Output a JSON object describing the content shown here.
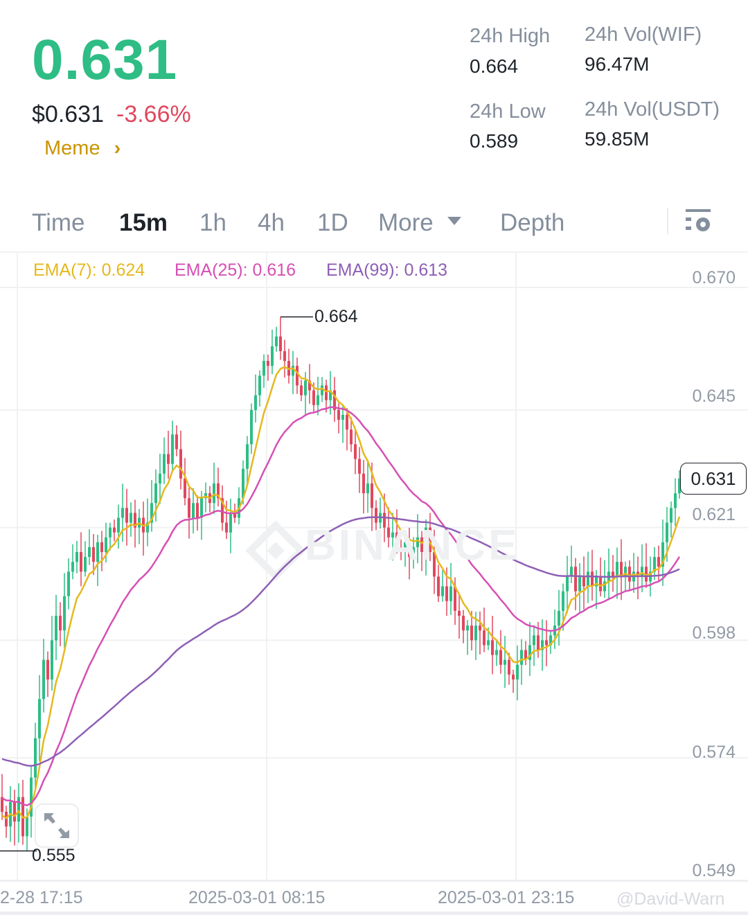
{
  "ticker": {
    "last_price": "0.631",
    "fiat_price": "$0.631",
    "change_pct": "-3.66%",
    "tag": "Meme",
    "tag_chevron": "›",
    "stats": [
      {
        "label": "24h High",
        "value": "0.664"
      },
      {
        "label": "24h Vol(WIF)",
        "value": "96.47M"
      },
      {
        "label": "24h Low",
        "value": "0.589"
      },
      {
        "label": "24h Vol(USDT)",
        "value": "59.85M"
      }
    ]
  },
  "tabs": [
    {
      "label": "Time",
      "active": false
    },
    {
      "label": "15m",
      "active": true
    },
    {
      "label": "1h",
      "active": false
    },
    {
      "label": "4h",
      "active": false
    },
    {
      "label": "1D",
      "active": false
    },
    {
      "label": "More",
      "active": false
    },
    {
      "label": "Depth",
      "active": false
    }
  ],
  "icons": {
    "more_dropdown": "caret-down-icon",
    "settings": "chart-settings-icon",
    "expand": "expand-icon",
    "watermark": "binance-logo"
  },
  "legend": [
    {
      "label": "EMA(7): 0.624",
      "color": "#e6b81e"
    },
    {
      "label": "EMA(25): 0.616",
      "color": "#d64fb4"
    },
    {
      "label": "EMA(99): 0.613",
      "color": "#8e5fb5"
    }
  ],
  "watermark": "BINANCE",
  "credit": "@David-Warn",
  "colors": {
    "up": "#2ebd85",
    "down": "#e0485e",
    "accent": "#c99400"
  },
  "chart_data": {
    "type": "candlestick",
    "interval": "15m",
    "y_ticks": [
      "0.670",
      "0.645",
      "0.621",
      "0.598",
      "0.574",
      "0.549"
    ],
    "ylim": [
      0.549,
      0.67
    ],
    "x_ticks": [
      "2-28 17:15",
      "2025-03-01 08:15",
      "2025-03-01 23:15"
    ],
    "grid": true,
    "high_marker": "0.664",
    "low_marker": "0.555",
    "last_price_label": "0.631",
    "closes": [
      0.563,
      0.56,
      0.565,
      0.561,
      0.566,
      0.558,
      0.562,
      0.57,
      0.578,
      0.586,
      0.594,
      0.59,
      0.598,
      0.603,
      0.6,
      0.607,
      0.612,
      0.614,
      0.616,
      0.612,
      0.615,
      0.617,
      0.614,
      0.618,
      0.616,
      0.619,
      0.621,
      0.62,
      0.623,
      0.625,
      0.622,
      0.624,
      0.621,
      0.623,
      0.62,
      0.622,
      0.626,
      0.63,
      0.632,
      0.636,
      0.634,
      0.64,
      0.637,
      0.631,
      0.627,
      0.623,
      0.626,
      0.623,
      0.627,
      0.628,
      0.626,
      0.63,
      0.627,
      0.622,
      0.62,
      0.624,
      0.623,
      0.627,
      0.633,
      0.638,
      0.645,
      0.648,
      0.652,
      0.655,
      0.654,
      0.658,
      0.66,
      0.657,
      0.655,
      0.652,
      0.654,
      0.65,
      0.648,
      0.651,
      0.649,
      0.646,
      0.648,
      0.65,
      0.647,
      0.649,
      0.645,
      0.643,
      0.644,
      0.641,
      0.638,
      0.635,
      0.632,
      0.628,
      0.63,
      0.625,
      0.622,
      0.624,
      0.621,
      0.619,
      0.62,
      0.617,
      0.616,
      0.618,
      0.615,
      0.617,
      0.619,
      0.616,
      0.621,
      0.616,
      0.611,
      0.607,
      0.609,
      0.606,
      0.609,
      0.604,
      0.603,
      0.6,
      0.601,
      0.598,
      0.601,
      0.6,
      0.597,
      0.598,
      0.595,
      0.596,
      0.593,
      0.594,
      0.591,
      0.59,
      0.593,
      0.596,
      0.594,
      0.597,
      0.599,
      0.596,
      0.598,
      0.597,
      0.599,
      0.601,
      0.604,
      0.608,
      0.611,
      0.613,
      0.608,
      0.611,
      0.609,
      0.612,
      0.609,
      0.611,
      0.608,
      0.61,
      0.612,
      0.611,
      0.614,
      0.611,
      0.613,
      0.61,
      0.612,
      0.611,
      0.613,
      0.61,
      0.612,
      0.615,
      0.613,
      0.618,
      0.622,
      0.625,
      0.628,
      0.631
    ],
    "series": [
      {
        "name": "EMA(7)",
        "period": 7
      },
      {
        "name": "EMA(25)",
        "period": 25
      },
      {
        "name": "EMA(99)",
        "period": 99
      }
    ]
  }
}
